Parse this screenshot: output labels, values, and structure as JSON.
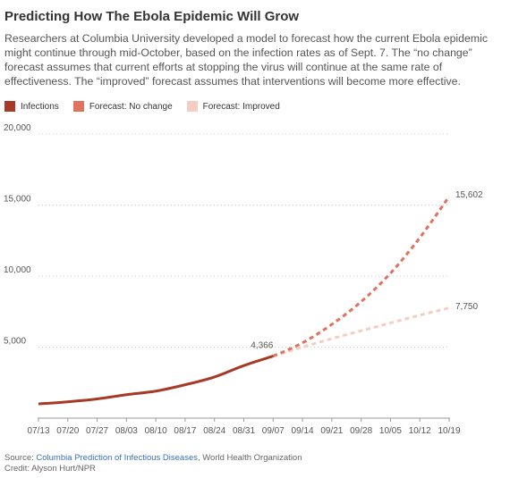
{
  "header": {
    "title": "Predicting How The Ebola Epidemic Will Grow",
    "subtitle": "Researchers at Columbia University developed a model to forecast how the current Ebola epidemic might continue through mid-October, based on the infection rates as of Sept. 7. The “no change” forecast assumes that current efforts at stopping the virus will continue at the same rate of effectiveness. The “improved” forecast assumes that interventions will become more effective."
  },
  "legend": [
    {
      "label": "Infections",
      "color": "#a63a26"
    },
    {
      "label": "Forecast: No change",
      "color": "#df7360"
    },
    {
      "label": "Forecast: Improved",
      "color": "#f5cdc3"
    }
  ],
  "footer": {
    "source_prefix": "Source: ",
    "source_link": "Columbia Prediction of Infectious Diseases",
    "source_suffix": ", World Health Organization",
    "credit": "Credit: Alyson Hurt/NPR"
  },
  "chart_data": {
    "type": "line",
    "title": "Predicting How The Ebola Epidemic Will Grow",
    "xlabel": "",
    "ylabel": "",
    "categories": [
      "07/13",
      "07/20",
      "07/27",
      "08/03",
      "08/10",
      "08/17",
      "08/24",
      "08/31",
      "09/07",
      "09/14",
      "09/21",
      "09/28",
      "10/05",
      "10/12",
      "10/19"
    ],
    "ylim": [
      0,
      20000
    ],
    "yticks": [
      0,
      5000,
      10000,
      15000,
      20000
    ],
    "ytick_labels": [
      "",
      "5,000",
      "10,000",
      "15,000",
      "20,000"
    ],
    "grid": true,
    "legend_position": "top-left",
    "series": [
      {
        "name": "Infections",
        "color": "#a63a26",
        "style": "solid",
        "values": [
          1000,
          1150,
          1350,
          1650,
          1900,
          2350,
          2900,
          3700,
          4366,
          null,
          null,
          null,
          null,
          null,
          null
        ]
      },
      {
        "name": "Forecast: No change",
        "color": "#df7360",
        "style": "dashed",
        "values": [
          null,
          null,
          null,
          null,
          null,
          null,
          null,
          null,
          4366,
          5300,
          6600,
          8200,
          10200,
          12700,
          15602
        ]
      },
      {
        "name": "Forecast: Improved",
        "color": "#f5cdc3",
        "style": "dashed",
        "values": [
          null,
          null,
          null,
          null,
          null,
          null,
          null,
          null,
          4366,
          5000,
          5600,
          6150,
          6700,
          7250,
          7750
        ]
      }
    ],
    "annotations": [
      {
        "series": 0,
        "index": 8,
        "text": "4,366"
      },
      {
        "series": 1,
        "index": 14,
        "text": "15,602"
      },
      {
        "series": 2,
        "index": 14,
        "text": "7,750"
      }
    ]
  }
}
